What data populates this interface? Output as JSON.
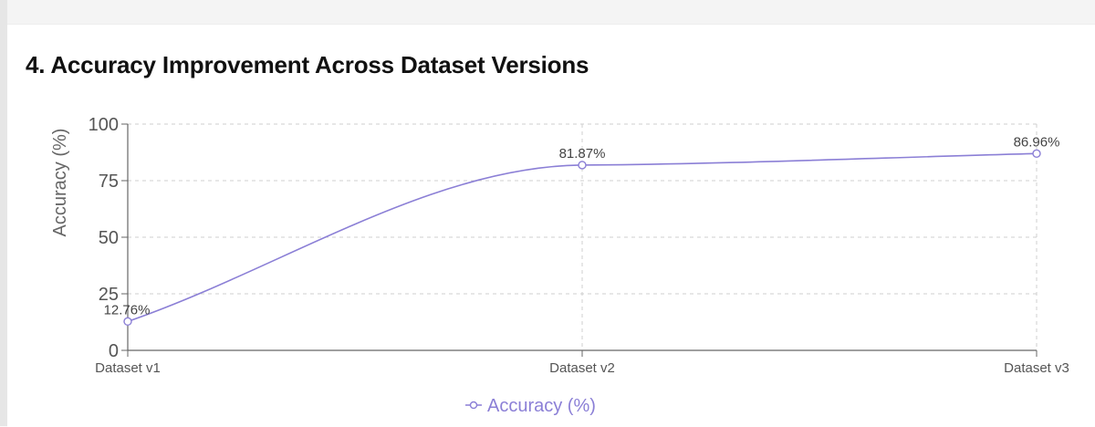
{
  "chart_data": {
    "type": "line",
    "title": "4. Accuracy Improvement Across Dataset Versions",
    "xlabel": "",
    "ylabel": "Accuracy (%)",
    "categories": [
      "Dataset v1",
      "Dataset v2",
      "Dataset v3"
    ],
    "ylim": [
      0,
      100
    ],
    "yticks": [
      "0",
      "25",
      "50",
      "75",
      "100"
    ],
    "series": [
      {
        "name": "Accuracy (%)",
        "values": [
          12.76,
          81.87,
          86.96
        ],
        "labels": [
          "12.76%",
          "81.87%",
          "86.96%"
        ],
        "color": "#8b7fd6"
      }
    ],
    "grid": true,
    "legend": "bottom-center"
  }
}
